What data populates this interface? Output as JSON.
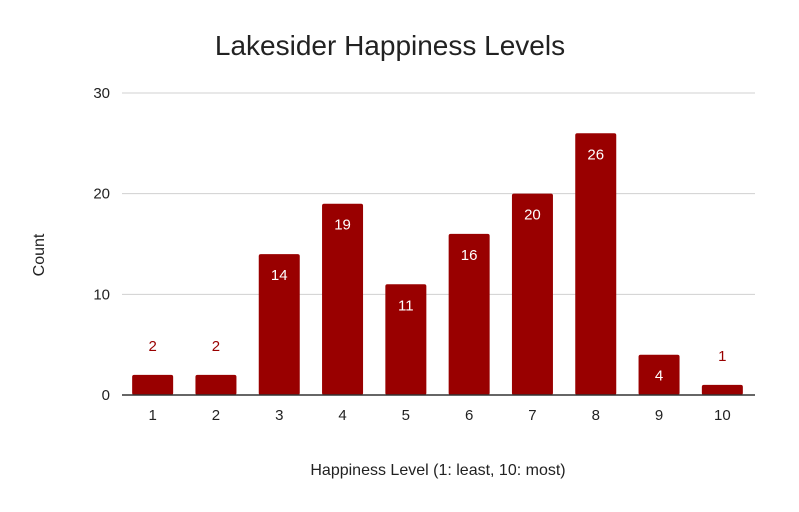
{
  "chart_data": {
    "type": "bar",
    "title": "Lakesider Happiness Levels",
    "xlabel": "Happiness Level (1: least, 10: most)",
    "ylabel": "Count",
    "categories": [
      "1",
      "2",
      "3",
      "4",
      "5",
      "6",
      "7",
      "8",
      "9",
      "10"
    ],
    "values": [
      2,
      2,
      14,
      19,
      11,
      16,
      20,
      26,
      4,
      1
    ],
    "data_labels": [
      "2",
      "2",
      "14",
      "19",
      "11",
      "16",
      "20",
      "26",
      "4",
      "1"
    ],
    "ylim": [
      0,
      30
    ],
    "yticks": [
      0,
      10,
      20,
      30
    ],
    "ytick_labels": [
      "0",
      "10",
      "20",
      "30"
    ],
    "grid": true,
    "legend": "none",
    "bar_color": "#990000",
    "label_inside_color": "#ffffff",
    "label_outside_color": "#990000"
  }
}
